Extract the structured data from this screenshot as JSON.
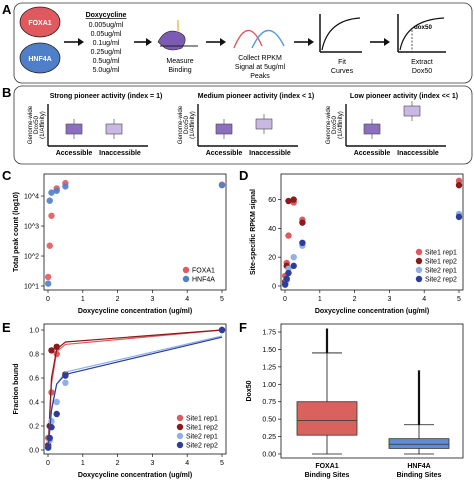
{
  "panelA": {
    "letter": "A",
    "factor1": "FOXA1",
    "factor2": "HNF4A",
    "dox_title": "Doxycycline",
    "dox_levels": [
      "0.005ug/ml",
      "0.05ug/ml",
      "0.1ug/ml",
      "0.25ug/ml",
      "0.5ug/ml",
      "5.0ug/ml"
    ],
    "step2": [
      "Measure",
      "Binding"
    ],
    "step3": [
      "Collect RPKM",
      "Signal at 5ug/ml",
      "Peaks"
    ],
    "step4": [
      "Fit",
      "Curves"
    ],
    "step5": [
      "Extract",
      "Dox50"
    ],
    "curve_label": "dox50",
    "colors": {
      "foxa1": "#e0595f",
      "hnf4a": "#4f7fc9",
      "arrow": "#111111",
      "protein": "#7c5bb5"
    }
  },
  "panelB": {
    "letter": "B",
    "ylabel_lines": [
      "Genome-wide",
      "Dox50",
      "(1/Affinity)"
    ],
    "categories": [
      "Accessible",
      "Inaccessible"
    ],
    "titles": [
      "Strong pioneer activity (index = 1)",
      "Medium pioneer activity (index < 1)",
      "Low pioneer activity (index << 1)"
    ],
    "colors": {
      "accessible": "#8d6fc0",
      "inaccessible": "#c9b8e3"
    }
  },
  "panelC": {
    "letter": "C",
    "ylabel": "Total peak count (log10)",
    "xlabel": "Doxycycline concentration (ug/ml)",
    "yticks": [
      "10^1",
      "10^4",
      "10^3",
      "10^2"
    ],
    "xticks": [
      "0",
      "1",
      "2",
      "3",
      "4",
      "5"
    ],
    "legend": [
      "FOXA1",
      "HNF4A"
    ]
  },
  "panelD": {
    "letter": "D",
    "ylabel": "Site-specific RPKM signal",
    "xlabel": "Doxycycline concentration (ug/ml)",
    "yticks": [
      "0",
      "20",
      "40",
      "60"
    ],
    "xticks": [
      "0",
      "1",
      "2",
      "3",
      "4",
      "5"
    ],
    "legend": [
      "Site1 rep1",
      "Site1 rep2",
      "Site2 rep1",
      "Site2 rep2"
    ]
  },
  "panelE": {
    "letter": "E",
    "ylabel": "Fraction bound",
    "xlabel": "Doxycycline concentration (ug/ml)",
    "yticks": [
      "0.0",
      "0.2",
      "0.4",
      "0.6",
      "0.8",
      "1.0"
    ],
    "xticks": [
      "0",
      "1",
      "2",
      "3",
      "4",
      "5"
    ],
    "legend": [
      "Site1 rep1",
      "Site1 rep2",
      "Site2 rep1",
      "Site2 rep2"
    ]
  },
  "panelF": {
    "letter": "F",
    "ylabel": "Dox50",
    "yticks": [
      "0.00",
      "0.25",
      "0.50",
      "0.75",
      "1.00",
      "1.25",
      "1.50",
      "1.75"
    ],
    "categories": [
      [
        "FOXA1",
        "Binding Sites"
      ],
      [
        "HNF4A",
        "Binding Sites"
      ]
    ]
  },
  "chart_data": [
    {
      "panel": "C",
      "type": "scatter",
      "xlabel": "Doxycycline concentration (ug/ml)",
      "ylabel": "Total peak count (log10)",
      "xlim": [
        0,
        5
      ],
      "ylim": [
        10,
        40000
      ],
      "log_y": true,
      "series": [
        {
          "name": "FOXA1",
          "color": "#e0595f",
          "x": [
            0.005,
            0.05,
            0.1,
            0.25,
            0.5,
            5.0
          ],
          "y": [
            20,
            220,
            2200,
            18000,
            27000,
            24000
          ]
        },
        {
          "name": "HNF4A",
          "color": "#4f7fc9",
          "x": [
            0.005,
            0.05,
            0.1,
            0.25,
            0.5,
            5.0
          ],
          "y": [
            12,
            7000,
            13000,
            15000,
            21000,
            23000
          ]
        }
      ]
    },
    {
      "panel": "D",
      "type": "scatter",
      "xlabel": "Doxycycline concentration (ug/ml)",
      "ylabel": "Site-specific RPKM signal",
      "xlim": [
        0,
        5
      ],
      "ylim": [
        0,
        75
      ],
      "series": [
        {
          "name": "Site1 rep1",
          "color": "#e0595f",
          "x": [
            0.005,
            0.05,
            0.1,
            0.25,
            0.5,
            5.0
          ],
          "y": [
            7,
            16,
            35,
            58,
            46,
            73
          ]
        },
        {
          "name": "Site1 rep2",
          "color": "#8b1a1a",
          "x": [
            0.005,
            0.05,
            0.1,
            0.25,
            0.5,
            5.0
          ],
          "y": [
            3,
            14,
            59,
            60,
            44,
            70
          ]
        },
        {
          "name": "Site2 rep1",
          "color": "#8fb1e8",
          "x": [
            0.005,
            0.05,
            0.1,
            0.25,
            0.5,
            5.0
          ],
          "y": [
            1,
            4,
            12,
            20,
            28,
            50
          ]
        },
        {
          "name": "Site2 rep2",
          "color": "#2c3e99",
          "x": [
            0.005,
            0.05,
            0.1,
            0.25,
            0.5,
            5.0
          ],
          "y": [
            1,
            5,
            9,
            14,
            30,
            48
          ]
        }
      ]
    },
    {
      "panel": "E",
      "type": "line",
      "xlabel": "Doxycycline concentration (ug/ml)",
      "ylabel": "Fraction bound",
      "xlim": [
        0,
        5
      ],
      "ylim": [
        0,
        1
      ],
      "series": [
        {
          "name": "Site1 rep1",
          "color": "#e0595f",
          "x": [
            0.005,
            0.05,
            0.1,
            0.25,
            0.5,
            5.0
          ],
          "y": [
            0.1,
            0.2,
            0.48,
            0.8,
            0.63,
            1.0
          ],
          "fit_x": [
            0,
            0.1,
            0.25,
            0.5,
            5
          ],
          "fit_y": [
            0.0,
            0.55,
            0.82,
            0.88,
            1.0
          ]
        },
        {
          "name": "Site1 rep2",
          "color": "#8b1a1a",
          "x": [
            0.005,
            0.05,
            0.1,
            0.25,
            0.5,
            5.0
          ],
          "y": [
            0.04,
            0.2,
            0.83,
            0.86,
            0.63,
            1.0
          ],
          "fit_x": [
            0,
            0.1,
            0.25,
            0.5,
            5
          ],
          "fit_y": [
            0.0,
            0.6,
            0.84,
            0.9,
            1.0
          ]
        },
        {
          "name": "Site2 rep1",
          "color": "#8fb1e8",
          "x": [
            0.005,
            0.05,
            0.1,
            0.25,
            0.5,
            5.0
          ],
          "y": [
            0.02,
            0.08,
            0.24,
            0.4,
            0.56,
            1.0
          ],
          "fit_x": [
            0,
            0.1,
            0.25,
            0.5,
            5
          ],
          "fit_y": [
            0.0,
            0.35,
            0.55,
            0.65,
            0.95
          ]
        },
        {
          "name": "Site2 rep2",
          "color": "#2c3e99",
          "x": [
            0.005,
            0.05,
            0.1,
            0.25,
            0.5,
            5.0
          ],
          "y": [
            0.02,
            0.1,
            0.19,
            0.3,
            0.62,
            1.0
          ],
          "fit_x": [
            0,
            0.1,
            0.25,
            0.5,
            5
          ],
          "fit_y": [
            0.0,
            0.33,
            0.55,
            0.63,
            0.94
          ]
        }
      ]
    },
    {
      "panel": "F",
      "type": "box",
      "ylabel": "Dox50",
      "ylim": [
        0,
        1.75
      ],
      "boxes": [
        {
          "name": "FOXA1 Binding Sites",
          "color": "#d9625f",
          "min": 0.0,
          "q1": 0.27,
          "median": 0.48,
          "q3": 0.75,
          "max": 1.45,
          "outlier_top": 1.8
        },
        {
          "name": "HNF4A Binding Sites",
          "color": "#5b8dd9",
          "min": 0.0,
          "q1": 0.08,
          "median": 0.14,
          "q3": 0.22,
          "max": 0.42,
          "outlier_top": 1.2
        }
      ]
    }
  ]
}
